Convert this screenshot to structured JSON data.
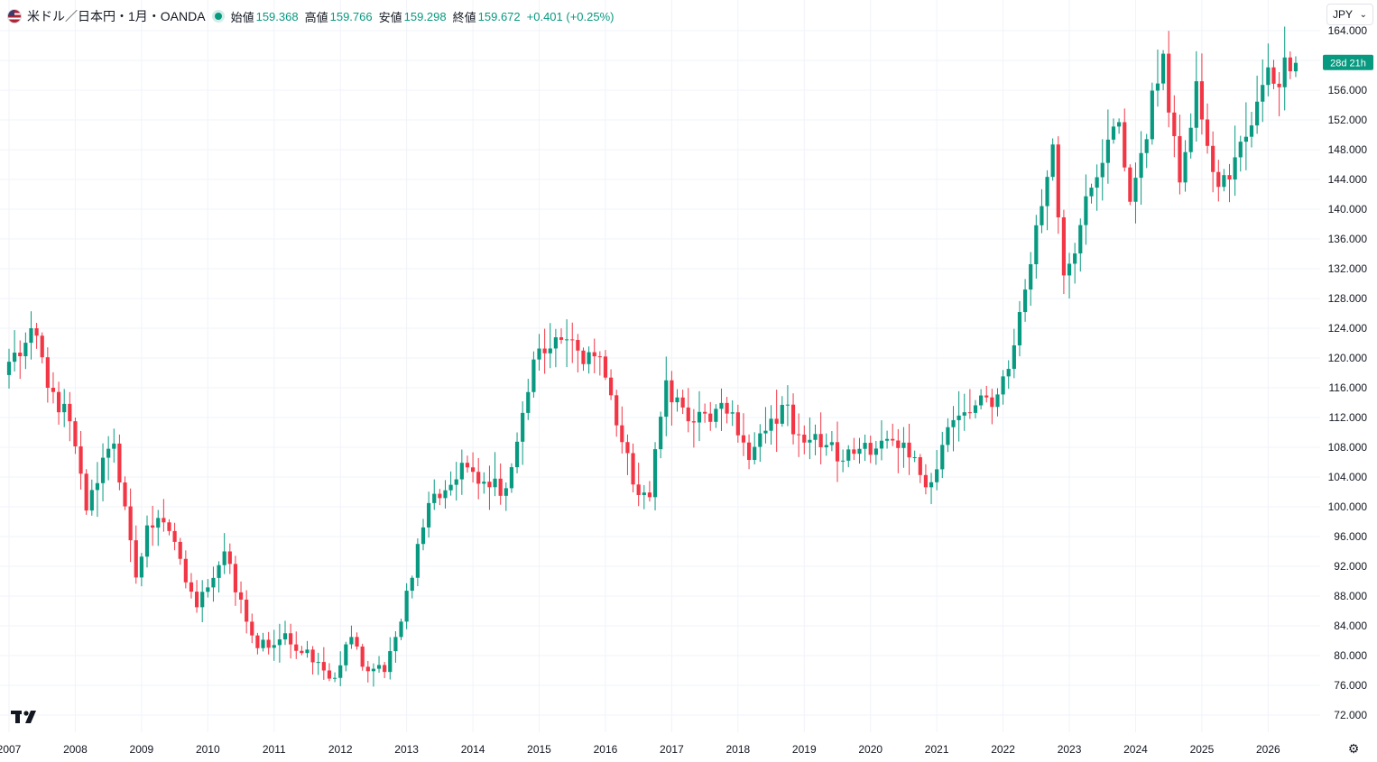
{
  "legend": {
    "symbol": "米ドル／日本円・1月・OANDA",
    "open_label": "始値",
    "open": "159.368",
    "high_label": "高値",
    "high": "159.766",
    "low_label": "安値",
    "low": "159.298",
    "close_label": "終値",
    "close": "159.672",
    "change": "+0.401 (+0.25%)"
  },
  "currency": "JPY",
  "countdown": "28d 21h",
  "colors": {
    "up": "#089981",
    "down": "#f23645",
    "grid": "#f0f3fa"
  },
  "chart_data": {
    "type": "candlestick",
    "interval": "1M",
    "ylim": [
      70,
      164
    ],
    "y_ticks": [
      72,
      76,
      80,
      84,
      88,
      92,
      96,
      100,
      104,
      108,
      112,
      116,
      120,
      124,
      128,
      132,
      136,
      140,
      144,
      148,
      152,
      156,
      160,
      164
    ],
    "y_tick_labels": [
      "72.000",
      "76.000",
      "80.000",
      "84.000",
      "88.000",
      "92.000",
      "96.000",
      "100.000",
      "104.000",
      "108.000",
      "112.000",
      "116.000",
      "120.000",
      "124.000",
      "128.000",
      "132.000",
      "136.000",
      "140.000",
      "144.000",
      "148.000",
      "152.000",
      "156.000",
      "160.000",
      "164.000"
    ],
    "x_labels": [
      "2007",
      "2008",
      "2009",
      "2010",
      "2011",
      "2012",
      "2013",
      "2014",
      "2015",
      "2016",
      "2017",
      "2018",
      "2019",
      "2020",
      "2021",
      "2022",
      "2023",
      "2024",
      "2025",
      "2026"
    ],
    "x_start": "2007-01",
    "last_price": 159.672,
    "anchors": [
      [
        "2007-01",
        119.5
      ],
      [
        "2007-06",
        123.0
      ],
      [
        "2007-08",
        116.0
      ],
      [
        "2007-12",
        111.5
      ],
      [
        "2008-03",
        99.5
      ],
      [
        "2008-07",
        107.8
      ],
      [
        "2008-08",
        108.5
      ],
      [
        "2008-11",
        95.5
      ],
      [
        "2008-12",
        90.5
      ],
      [
        "2009-02",
        97.5
      ],
      [
        "2009-04",
        98.5
      ],
      [
        "2009-08",
        93.0
      ],
      [
        "2009-11",
        86.5
      ],
      [
        "2010-04",
        94.0
      ],
      [
        "2010-06",
        88.5
      ],
      [
        "2010-10",
        81.0
      ],
      [
        "2011-03",
        83.0
      ],
      [
        "2011-04",
        81.5
      ],
      [
        "2011-10",
        78.0
      ],
      [
        "2011-12",
        77.0
      ],
      [
        "2012-03",
        82.5
      ],
      [
        "2012-05",
        78.5
      ],
      [
        "2012-09",
        77.8
      ],
      [
        "2012-11",
        82.5
      ],
      [
        "2013-05",
        100.5
      ],
      [
        "2013-12",
        105.3
      ],
      [
        "2014-07",
        102.5
      ],
      [
        "2014-12",
        119.8
      ],
      [
        "2015-06",
        122.5
      ],
      [
        "2015-08",
        121.0
      ],
      [
        "2015-12",
        120.2
      ],
      [
        "2016-06",
        103.0
      ],
      [
        "2016-09",
        101.3
      ],
      [
        "2016-12",
        117.0
      ],
      [
        "2017-04",
        111.5
      ],
      [
        "2017-12",
        112.7
      ],
      [
        "2018-03",
        106.3
      ],
      [
        "2018-09",
        113.7
      ],
      [
        "2018-12",
        109.7
      ],
      [
        "2019-05",
        108.3
      ],
      [
        "2019-08",
        106.2
      ],
      [
        "2019-12",
        108.6
      ],
      [
        "2020-06",
        107.9
      ],
      [
        "2020-12",
        103.3
      ],
      [
        "2021-03",
        110.7
      ],
      [
        "2021-12",
        115.1
      ],
      [
        "2022-03",
        121.7
      ],
      [
        "2022-10",
        148.7
      ],
      [
        "2022-12",
        131.1
      ],
      [
        "2023-06",
        144.3
      ],
      [
        "2023-10",
        151.7
      ],
      [
        "2023-12",
        141.0
      ],
      [
        "2024-06",
        160.9
      ],
      [
        "2024-09",
        143.6
      ],
      [
        "2024-12",
        157.2
      ],
      [
        "2025-04",
        143.0
      ],
      [
        "2025-06",
        144.0
      ],
      [
        "2025-12",
        156.7
      ],
      [
        "2026-06",
        159.672
      ]
    ]
  }
}
